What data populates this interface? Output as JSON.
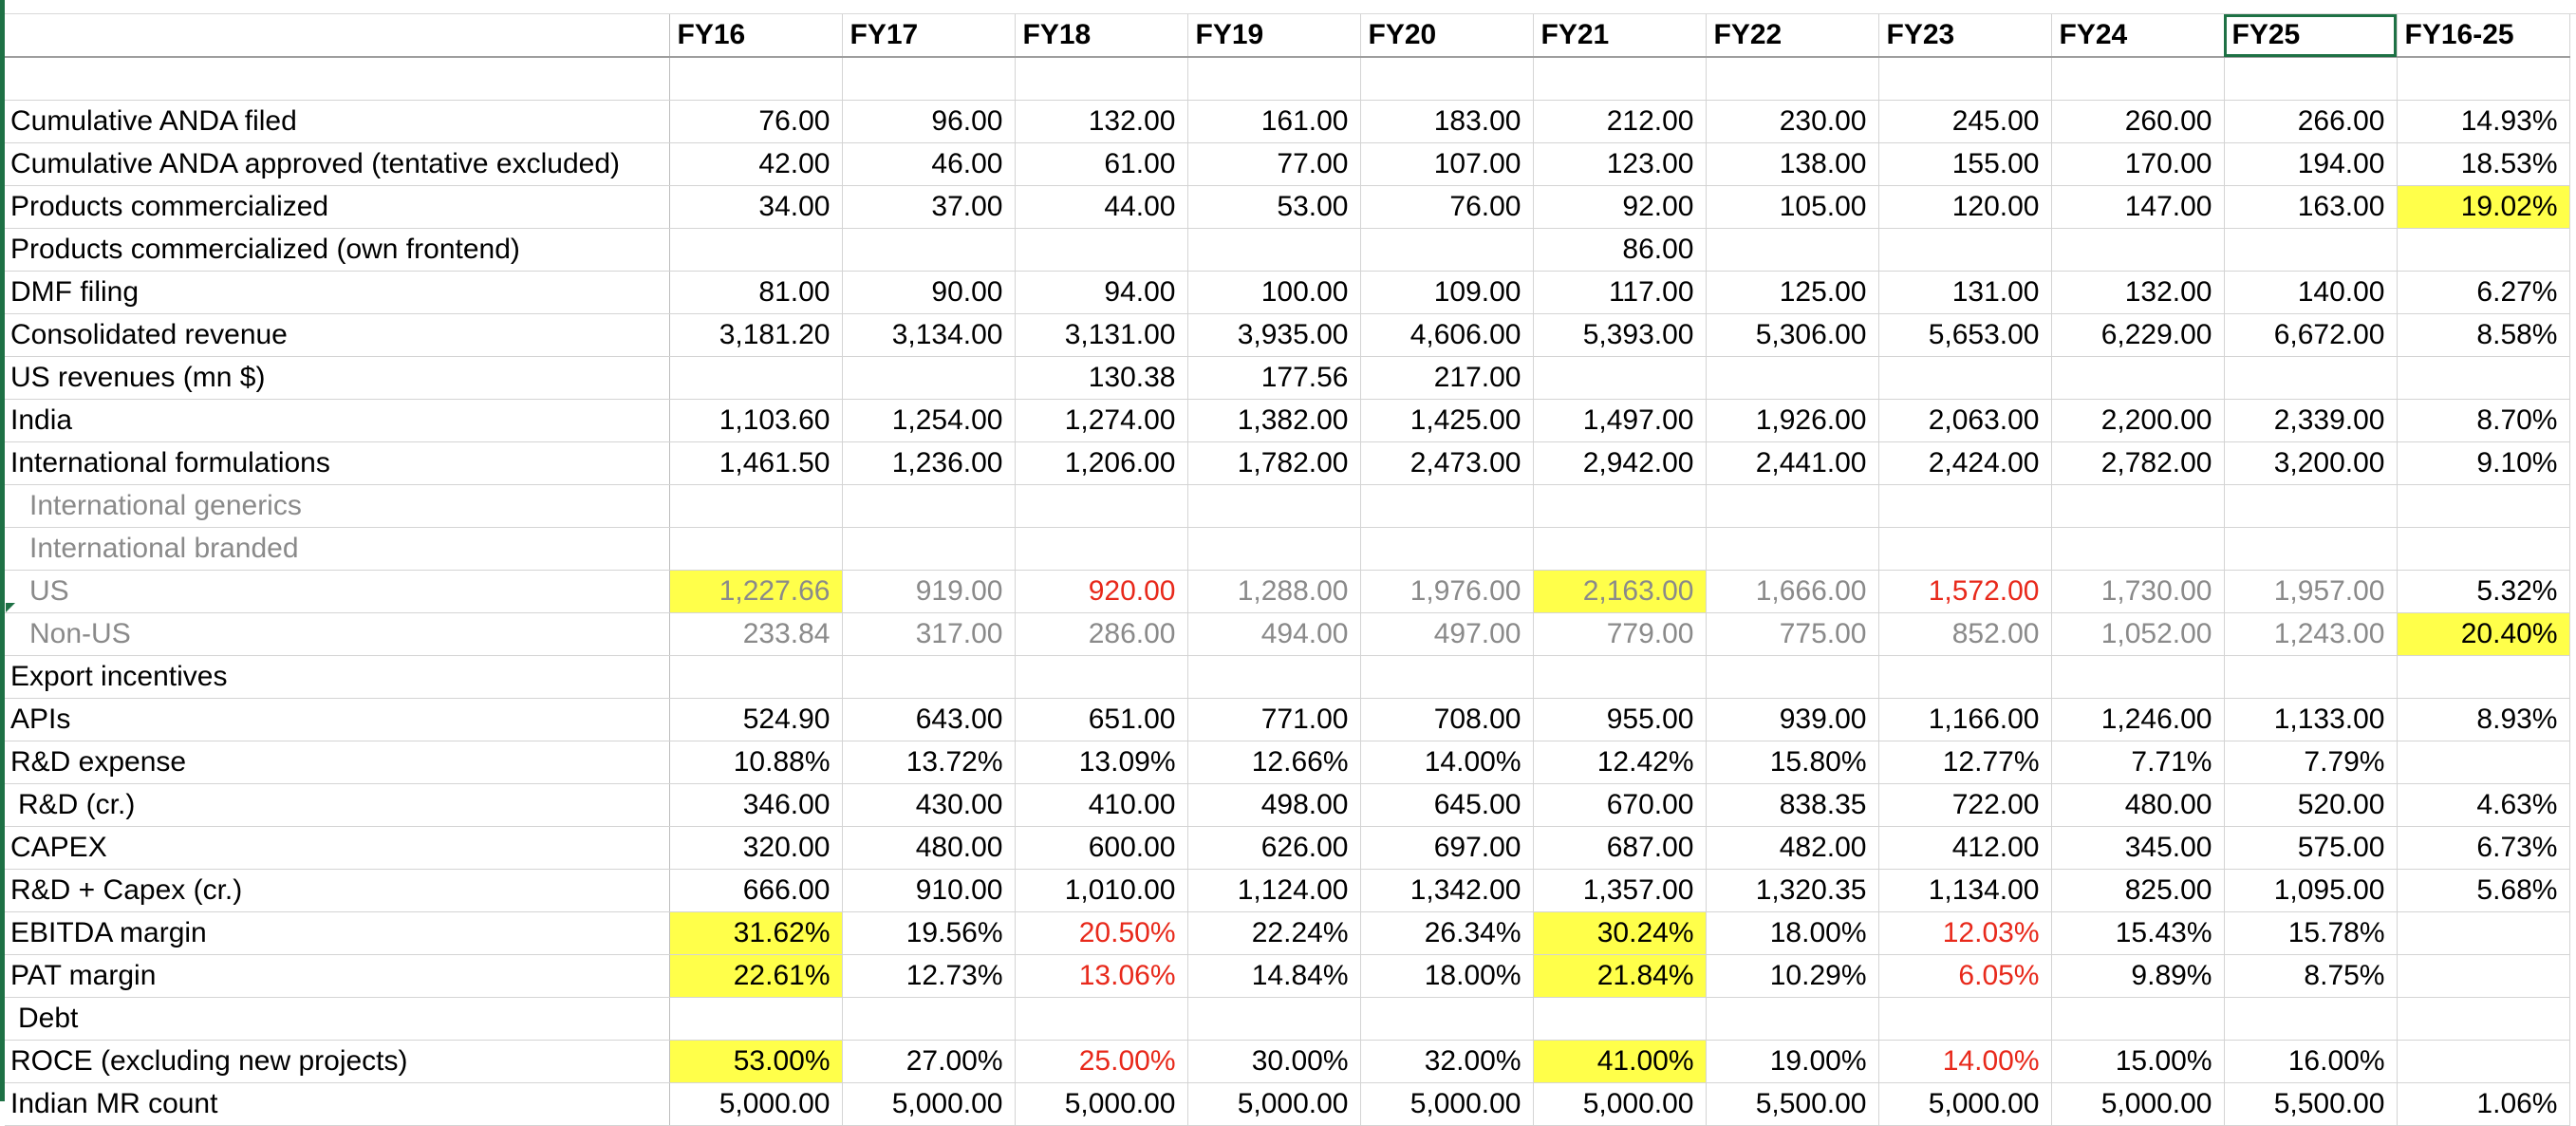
{
  "sheet": {
    "corner": "",
    "columns": [
      "FY16",
      "FY17",
      "FY18",
      "FY19",
      "FY20",
      "FY21",
      "FY22",
      "FY23",
      "FY24",
      "FY25",
      "FY16-25"
    ],
    "selected_column": "FY25",
    "highlight_color": "#ffff4a",
    "negative_color": "#e8291b",
    "rows": [
      {
        "label": "",
        "style": "",
        "cells": [
          [
            "",
            ""
          ],
          [
            "",
            ""
          ],
          [
            "",
            ""
          ],
          [
            "",
            ""
          ],
          [
            "",
            ""
          ],
          [
            "",
            ""
          ],
          [
            "",
            ""
          ],
          [
            "",
            ""
          ],
          [
            "",
            ""
          ],
          [
            "",
            ""
          ],
          [
            "",
            ""
          ]
        ]
      },
      {
        "label": "Cumulative ANDA filed",
        "style": "",
        "cells": [
          [
            "76.00",
            ""
          ],
          [
            "96.00",
            ""
          ],
          [
            "132.00",
            ""
          ],
          [
            "161.00",
            ""
          ],
          [
            "183.00",
            ""
          ],
          [
            "212.00",
            ""
          ],
          [
            "230.00",
            ""
          ],
          [
            "245.00",
            ""
          ],
          [
            "260.00",
            ""
          ],
          [
            "266.00",
            ""
          ],
          [
            "14.93%",
            ""
          ]
        ]
      },
      {
        "label": "Cumulative ANDA approved (tentative excluded)",
        "style": "",
        "cells": [
          [
            "42.00",
            ""
          ],
          [
            "46.00",
            ""
          ],
          [
            "61.00",
            ""
          ],
          [
            "77.00",
            ""
          ],
          [
            "107.00",
            ""
          ],
          [
            "123.00",
            ""
          ],
          [
            "138.00",
            ""
          ],
          [
            "155.00",
            ""
          ],
          [
            "170.00",
            ""
          ],
          [
            "194.00",
            ""
          ],
          [
            "18.53%",
            ""
          ]
        ]
      },
      {
        "label": "Products commercialized",
        "style": "",
        "cells": [
          [
            "34.00",
            ""
          ],
          [
            "37.00",
            ""
          ],
          [
            "44.00",
            ""
          ],
          [
            "53.00",
            ""
          ],
          [
            "76.00",
            ""
          ],
          [
            "92.00",
            ""
          ],
          [
            "105.00",
            ""
          ],
          [
            "120.00",
            ""
          ],
          [
            "147.00",
            ""
          ],
          [
            "163.00",
            ""
          ],
          [
            "19.02%",
            "hl"
          ]
        ]
      },
      {
        "label": "Products commercialized (own frontend)",
        "style": "",
        "cells": [
          [
            "",
            ""
          ],
          [
            "",
            ""
          ],
          [
            "",
            ""
          ],
          [
            "",
            ""
          ],
          [
            "",
            ""
          ],
          [
            "86.00",
            ""
          ],
          [
            "",
            ""
          ],
          [
            "",
            ""
          ],
          [
            "",
            ""
          ],
          [
            "",
            ""
          ],
          [
            "",
            ""
          ]
        ]
      },
      {
        "label": "DMF filing",
        "style": "",
        "cells": [
          [
            "81.00",
            ""
          ],
          [
            "90.00",
            ""
          ],
          [
            "94.00",
            ""
          ],
          [
            "100.00",
            ""
          ],
          [
            "109.00",
            ""
          ],
          [
            "117.00",
            ""
          ],
          [
            "125.00",
            ""
          ],
          [
            "131.00",
            ""
          ],
          [
            "132.00",
            ""
          ],
          [
            "140.00",
            ""
          ],
          [
            "6.27%",
            ""
          ]
        ]
      },
      {
        "label": "Consolidated revenue",
        "style": "",
        "cells": [
          [
            "3,181.20",
            ""
          ],
          [
            "3,134.00",
            ""
          ],
          [
            "3,131.00",
            ""
          ],
          [
            "3,935.00",
            ""
          ],
          [
            "4,606.00",
            ""
          ],
          [
            "5,393.00",
            ""
          ],
          [
            "5,306.00",
            ""
          ],
          [
            "5,653.00",
            ""
          ],
          [
            "6,229.00",
            ""
          ],
          [
            "6,672.00",
            ""
          ],
          [
            "8.58%",
            ""
          ]
        ]
      },
      {
        "label": "US revenues (mn $)",
        "style": "",
        "cells": [
          [
            "",
            ""
          ],
          [
            "",
            ""
          ],
          [
            "130.38",
            ""
          ],
          [
            "177.56",
            ""
          ],
          [
            "217.00",
            ""
          ],
          [
            "",
            ""
          ],
          [
            "",
            ""
          ],
          [
            "",
            ""
          ],
          [
            "",
            ""
          ],
          [
            "",
            ""
          ],
          [
            "",
            ""
          ]
        ]
      },
      {
        "label": "India",
        "style": "",
        "cells": [
          [
            "1,103.60",
            ""
          ],
          [
            "1,254.00",
            ""
          ],
          [
            "1,274.00",
            ""
          ],
          [
            "1,382.00",
            ""
          ],
          [
            "1,425.00",
            ""
          ],
          [
            "1,497.00",
            ""
          ],
          [
            "1,926.00",
            ""
          ],
          [
            "2,063.00",
            ""
          ],
          [
            "2,200.00",
            ""
          ],
          [
            "2,339.00",
            ""
          ],
          [
            "8.70%",
            ""
          ]
        ]
      },
      {
        "label": "International formulations",
        "style": "",
        "cells": [
          [
            "1,461.50",
            ""
          ],
          [
            "1,236.00",
            ""
          ],
          [
            "1,206.00",
            ""
          ],
          [
            "1,782.00",
            ""
          ],
          [
            "2,473.00",
            ""
          ],
          [
            "2,942.00",
            ""
          ],
          [
            "2,441.00",
            ""
          ],
          [
            "2,424.00",
            ""
          ],
          [
            "2,782.00",
            ""
          ],
          [
            "3,200.00",
            ""
          ],
          [
            "9.10%",
            ""
          ]
        ]
      },
      {
        "label": "International generics",
        "style": "gray",
        "cells": [
          [
            "",
            ""
          ],
          [
            "",
            ""
          ],
          [
            "",
            ""
          ],
          [
            "",
            ""
          ],
          [
            "",
            ""
          ],
          [
            "",
            ""
          ],
          [
            "",
            ""
          ],
          [
            "",
            ""
          ],
          [
            "",
            ""
          ],
          [
            "",
            ""
          ],
          [
            "",
            ""
          ]
        ]
      },
      {
        "label": "International branded",
        "style": "gray",
        "cells": [
          [
            "",
            ""
          ],
          [
            "",
            ""
          ],
          [
            "",
            ""
          ],
          [
            "",
            ""
          ],
          [
            "",
            ""
          ],
          [
            "",
            ""
          ],
          [
            "",
            ""
          ],
          [
            "",
            ""
          ],
          [
            "",
            ""
          ],
          [
            "",
            ""
          ],
          [
            "",
            ""
          ]
        ]
      },
      {
        "label": "US",
        "style": "gray",
        "cells": [
          [
            "1,227.66",
            "hl"
          ],
          [
            "919.00",
            ""
          ],
          [
            "920.00",
            "red"
          ],
          [
            "1,288.00",
            ""
          ],
          [
            "1,976.00",
            ""
          ],
          [
            "2,163.00",
            "hl"
          ],
          [
            "1,666.00",
            ""
          ],
          [
            "1,572.00",
            "red"
          ],
          [
            "1,730.00",
            ""
          ],
          [
            "1,957.00",
            ""
          ],
          [
            "5.32%",
            "dark"
          ]
        ]
      },
      {
        "label": "Non-US",
        "style": "gray",
        "cells": [
          [
            "233.84",
            ""
          ],
          [
            "317.00",
            ""
          ],
          [
            "286.00",
            ""
          ],
          [
            "494.00",
            ""
          ],
          [
            "497.00",
            ""
          ],
          [
            "779.00",
            ""
          ],
          [
            "775.00",
            ""
          ],
          [
            "852.00",
            ""
          ],
          [
            "1,052.00",
            ""
          ],
          [
            "1,243.00",
            ""
          ],
          [
            "20.40%",
            "hl dark"
          ]
        ]
      },
      {
        "label": "Export incentives",
        "style": "",
        "cells": [
          [
            "",
            ""
          ],
          [
            "",
            ""
          ],
          [
            "",
            ""
          ],
          [
            "",
            ""
          ],
          [
            "",
            ""
          ],
          [
            "",
            ""
          ],
          [
            "",
            ""
          ],
          [
            "",
            ""
          ],
          [
            "",
            ""
          ],
          [
            "",
            ""
          ],
          [
            "",
            ""
          ]
        ]
      },
      {
        "label": "APIs",
        "style": "",
        "cells": [
          [
            "524.90",
            ""
          ],
          [
            "643.00",
            ""
          ],
          [
            "651.00",
            ""
          ],
          [
            "771.00",
            ""
          ],
          [
            "708.00",
            ""
          ],
          [
            "955.00",
            ""
          ],
          [
            "939.00",
            ""
          ],
          [
            "1,166.00",
            ""
          ],
          [
            "1,246.00",
            ""
          ],
          [
            "1,133.00",
            ""
          ],
          [
            "8.93%",
            ""
          ]
        ]
      },
      {
        "label": "R&D expense",
        "style": "",
        "cells": [
          [
            "10.88%",
            ""
          ],
          [
            "13.72%",
            ""
          ],
          [
            "13.09%",
            ""
          ],
          [
            "12.66%",
            ""
          ],
          [
            "14.00%",
            ""
          ],
          [
            "12.42%",
            ""
          ],
          [
            "15.80%",
            ""
          ],
          [
            "12.77%",
            ""
          ],
          [
            "7.71%",
            ""
          ],
          [
            "7.79%",
            ""
          ],
          [
            "",
            ""
          ]
        ]
      },
      {
        "label": "R&D (cr.)",
        "style": "indent",
        "cells": [
          [
            "346.00",
            ""
          ],
          [
            "430.00",
            ""
          ],
          [
            "410.00",
            ""
          ],
          [
            "498.00",
            ""
          ],
          [
            "645.00",
            ""
          ],
          [
            "670.00",
            ""
          ],
          [
            "838.35",
            ""
          ],
          [
            "722.00",
            ""
          ],
          [
            "480.00",
            ""
          ],
          [
            "520.00",
            ""
          ],
          [
            "4.63%",
            ""
          ]
        ]
      },
      {
        "label": "CAPEX",
        "style": "",
        "cells": [
          [
            "320.00",
            ""
          ],
          [
            "480.00",
            ""
          ],
          [
            "600.00",
            ""
          ],
          [
            "626.00",
            ""
          ],
          [
            "697.00",
            ""
          ],
          [
            "687.00",
            ""
          ],
          [
            "482.00",
            ""
          ],
          [
            "412.00",
            ""
          ],
          [
            "345.00",
            ""
          ],
          [
            "575.00",
            ""
          ],
          [
            "6.73%",
            ""
          ]
        ]
      },
      {
        "label": "R&D + Capex (cr.)",
        "style": "",
        "cells": [
          [
            "666.00",
            ""
          ],
          [
            "910.00",
            ""
          ],
          [
            "1,010.00",
            ""
          ],
          [
            "1,124.00",
            ""
          ],
          [
            "1,342.00",
            ""
          ],
          [
            "1,357.00",
            ""
          ],
          [
            "1,320.35",
            ""
          ],
          [
            "1,134.00",
            ""
          ],
          [
            "825.00",
            ""
          ],
          [
            "1,095.00",
            ""
          ],
          [
            "5.68%",
            ""
          ]
        ]
      },
      {
        "label": "EBITDA margin",
        "style": "",
        "cells": [
          [
            "31.62%",
            "hl"
          ],
          [
            "19.56%",
            ""
          ],
          [
            "20.50%",
            "red"
          ],
          [
            "22.24%",
            ""
          ],
          [
            "26.34%",
            ""
          ],
          [
            "30.24%",
            "hl"
          ],
          [
            "18.00%",
            ""
          ],
          [
            "12.03%",
            "red"
          ],
          [
            "15.43%",
            ""
          ],
          [
            "15.78%",
            ""
          ],
          [
            "",
            ""
          ]
        ]
      },
      {
        "label": "PAT margin",
        "style": "",
        "cells": [
          [
            "22.61%",
            "hl"
          ],
          [
            "12.73%",
            ""
          ],
          [
            "13.06%",
            "red"
          ],
          [
            "14.84%",
            ""
          ],
          [
            "18.00%",
            ""
          ],
          [
            "21.84%",
            "hl"
          ],
          [
            "10.29%",
            ""
          ],
          [
            "6.05%",
            "red"
          ],
          [
            "9.89%",
            ""
          ],
          [
            "8.75%",
            ""
          ],
          [
            "",
            ""
          ]
        ]
      },
      {
        "label": "Debt",
        "style": "indent",
        "cells": [
          [
            "",
            ""
          ],
          [
            "",
            ""
          ],
          [
            "",
            ""
          ],
          [
            "",
            ""
          ],
          [
            "",
            ""
          ],
          [
            "",
            ""
          ],
          [
            "",
            ""
          ],
          [
            "",
            ""
          ],
          [
            "",
            ""
          ],
          [
            "",
            ""
          ],
          [
            "",
            ""
          ]
        ]
      },
      {
        "label": "ROCE (excluding new projects)",
        "style": "",
        "cells": [
          [
            "53.00%",
            "hl"
          ],
          [
            "27.00%",
            ""
          ],
          [
            "25.00%",
            "red"
          ],
          [
            "30.00%",
            ""
          ],
          [
            "32.00%",
            ""
          ],
          [
            "41.00%",
            "hl"
          ],
          [
            "19.00%",
            ""
          ],
          [
            "14.00%",
            "red"
          ],
          [
            "15.00%",
            ""
          ],
          [
            "16.00%",
            ""
          ],
          [
            "",
            ""
          ]
        ]
      },
      {
        "label": "Indian MR count",
        "style": "",
        "cells": [
          [
            "5,000.00",
            ""
          ],
          [
            "5,000.00",
            ""
          ],
          [
            "5,000.00",
            ""
          ],
          [
            "5,000.00",
            ""
          ],
          [
            "5,000.00",
            ""
          ],
          [
            "5,000.00",
            ""
          ],
          [
            "5,500.00",
            ""
          ],
          [
            "5,000.00",
            ""
          ],
          [
            "5,000.00",
            ""
          ],
          [
            "5,500.00",
            ""
          ],
          [
            "1.06%",
            ""
          ]
        ]
      }
    ]
  }
}
